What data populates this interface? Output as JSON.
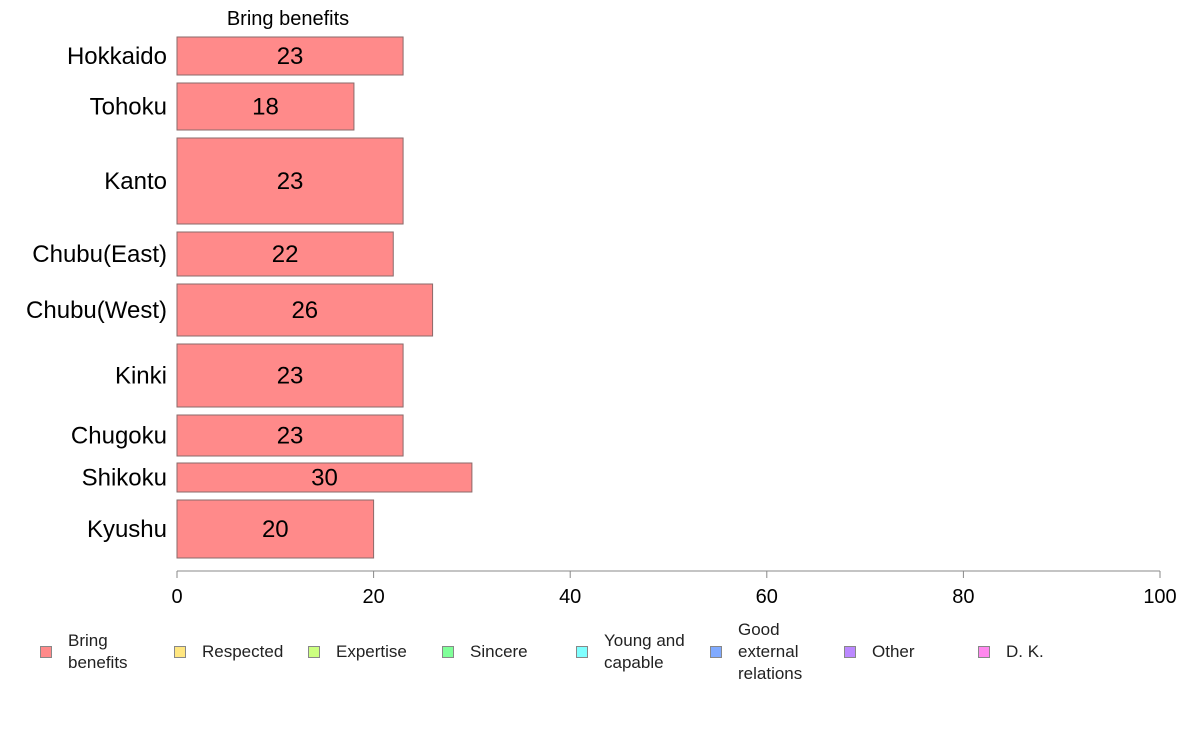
{
  "chart_data": {
    "type": "bar",
    "orientation": "horizontal",
    "stacked": true,
    "title": "Bring benefits",
    "categories": [
      "Hokkaido",
      "Tohoku",
      "Kanto",
      "Chubu(East)",
      "Chubu(West)",
      "Kinki",
      "Chugoku",
      "Shikoku",
      "Kyushu"
    ],
    "series": [
      {
        "name": "Bring benefits",
        "values": [
          23,
          18,
          23,
          22,
          26,
          23,
          23,
          30,
          20
        ],
        "color": "#ff8a8a"
      }
    ],
    "data_labels": [
      "23",
      "18",
      "23",
      "22",
      "26",
      "23",
      "23",
      "30",
      "20"
    ],
    "xlim": [
      0,
      100
    ],
    "xticks": [
      0,
      20,
      40,
      60,
      80,
      100
    ],
    "grid": false,
    "legend_position": "bottom"
  },
  "legend": [
    {
      "label": "Bring\nbenefits",
      "color": "#ff8a8a"
    },
    {
      "label": "Respected",
      "color": "#ffe680"
    },
    {
      "label": "Expertise",
      "color": "#ccff80"
    },
    {
      "label": "Sincere",
      "color": "#80ff99"
    },
    {
      "label": "Young and\ncapable",
      "color": "#80ffff"
    },
    {
      "label": "Good\nexternal\nrelations",
      "color": "#80aaff"
    },
    {
      "label": "Other",
      "color": "#bb88ff"
    },
    {
      "label": "D. K.",
      "color": "#ff88ee"
    }
  ]
}
